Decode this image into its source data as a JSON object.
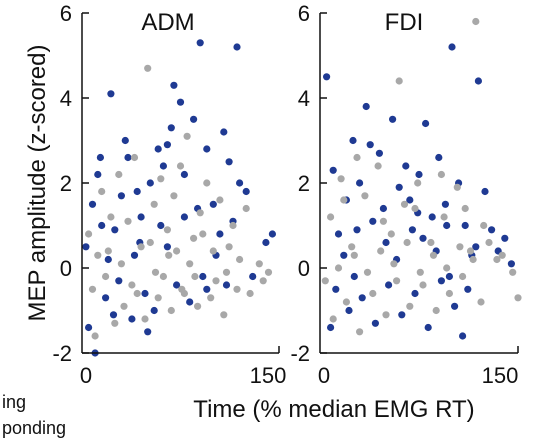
{
  "chart_data": [
    {
      "type": "scatter",
      "title": "ADM",
      "xlabel": "Time (% median EMG RT)",
      "ylabel": "MEP amplitude (z-scored)",
      "xlim": [
        0,
        150
      ],
      "ylim": [
        -2,
        6
      ],
      "xticks": [
        "0",
        "150"
      ],
      "yticks": [
        "-2",
        "0",
        "2",
        "4",
        "6"
      ],
      "grid": false,
      "series": [
        {
          "color": "#1f3a93",
          "points": [
            [
              10,
              -2.0
            ],
            [
              3,
              0.5
            ],
            [
              8,
              1.5
            ],
            [
              12,
              2.2
            ],
            [
              15,
              1.0
            ],
            [
              22,
              4.1
            ],
            [
              25,
              0.9
            ],
            [
              30,
              1.7
            ],
            [
              35,
              2.6
            ],
            [
              40,
              0.3
            ],
            [
              45,
              1.2
            ],
            [
              52,
              2.0
            ],
            [
              58,
              2.8
            ],
            [
              60,
              1.0
            ],
            [
              65,
              0.5
            ],
            [
              68,
              3.3
            ],
            [
              70,
              4.3
            ],
            [
              75,
              3.9
            ],
            [
              78,
              2.2
            ],
            [
              85,
              3.5
            ],
            [
              90,
              5.3
            ],
            [
              95,
              2.8
            ],
            [
              100,
              1.5
            ],
            [
              105,
              0.8
            ],
            [
              108,
              3.2
            ],
            [
              112,
              2.5
            ],
            [
              118,
              5.2
            ],
            [
              120,
              2.0
            ],
            [
              125,
              1.8
            ],
            [
              130,
              -0.2
            ],
            [
              140,
              0.6
            ],
            [
              145,
              0.8
            ],
            [
              18,
              -0.7
            ],
            [
              28,
              -0.3
            ],
            [
              38,
              -1.2
            ],
            [
              48,
              -0.6
            ],
            [
              55,
              -1.0
            ],
            [
              72,
              -0.4
            ],
            [
              82,
              -0.8
            ],
            [
              92,
              -0.2
            ],
            [
              5,
              -1.4
            ],
            [
              20,
              0.2
            ],
            [
              42,
              1.8
            ],
            [
              62,
              2.4
            ],
            [
              88,
              1.4
            ],
            [
              102,
              0.3
            ],
            [
              110,
              -0.4
            ],
            [
              14,
              2.6
            ],
            [
              33,
              3.0
            ],
            [
              50,
              -1.5
            ],
            [
              78,
              1.2
            ],
            [
              95,
              -0.5
            ],
            [
              65,
              2.9
            ],
            [
              115,
              1.1
            ],
            [
              24,
              -1.1
            ],
            [
              44,
              0.6
            ]
          ]
        },
        {
          "color": "#a8a8a8",
          "points": [
            [
              5,
              0.8
            ],
            [
              15,
              1.8
            ],
            [
              20,
              0.4
            ],
            [
              28,
              2.2
            ],
            [
              35,
              1.1
            ],
            [
              40,
              2.6
            ],
            [
              45,
              0.5
            ],
            [
              50,
              4.7
            ],
            [
              55,
              1.5
            ],
            [
              60,
              2.1
            ],
            [
              65,
              0.9
            ],
            [
              70,
              1.7
            ],
            [
              75,
              2.4
            ],
            [
              80,
              3.1
            ],
            [
              85,
              0.7
            ],
            [
              90,
              1.3
            ],
            [
              95,
              2.0
            ],
            [
              100,
              0.4
            ],
            [
              105,
              1.6
            ],
            [
              110,
              -0.1
            ],
            [
              115,
              1.0
            ],
            [
              120,
              0.2
            ],
            [
              128,
              -0.6
            ],
            [
              135,
              0.1
            ],
            [
              10,
              -1.6
            ],
            [
              25,
              -1.3
            ],
            [
              32,
              -0.9
            ],
            [
              48,
              -1.2
            ],
            [
              58,
              -0.7
            ],
            [
              68,
              -1.0
            ],
            [
              78,
              -0.6
            ],
            [
              88,
              -0.9
            ],
            [
              98,
              -0.7
            ],
            [
              108,
              -1.1
            ],
            [
              118,
              -0.5
            ],
            [
              138,
              -0.3
            ],
            [
              12,
              0.3
            ],
            [
              22,
              1.2
            ],
            [
              38,
              -0.4
            ],
            [
              52,
              0.6
            ],
            [
              62,
              -0.2
            ],
            [
              72,
              0.4
            ],
            [
              82,
              0.1
            ],
            [
              92,
              0.8
            ],
            [
              102,
              -0.3
            ],
            [
              112,
              0.5
            ],
            [
              125,
              1.4
            ],
            [
              142,
              -0.1
            ],
            [
              8,
              -0.5
            ],
            [
              18,
              -0.2
            ],
            [
              30,
              0.1
            ],
            [
              42,
              -0.6
            ],
            [
              56,
              -0.1
            ],
            [
              66,
              0.3
            ],
            [
              76,
              -0.5
            ],
            [
              86,
              -0.2
            ]
          ]
        }
      ]
    },
    {
      "type": "scatter",
      "title": "FDI",
      "xlabel": "Time (% median EMG RT)",
      "xlim": [
        0,
        150
      ],
      "ylim": [
        -2,
        6
      ],
      "xticks": [
        "0",
        "150"
      ],
      "yticks": [
        "-2",
        "0",
        "2",
        "4",
        "6"
      ],
      "grid": false,
      "series": [
        {
          "color": "#1f3a93",
          "points": [
            [
              5,
              4.5
            ],
            [
              10,
              2.3
            ],
            [
              14,
              0.8
            ],
            [
              20,
              1.6
            ],
            [
              25,
              3.0
            ],
            [
              30,
              2.0
            ],
            [
              35,
              3.8
            ],
            [
              40,
              1.1
            ],
            [
              45,
              2.7
            ],
            [
              50,
              0.6
            ],
            [
              55,
              3.5
            ],
            [
              60,
              1.9
            ],
            [
              65,
              2.4
            ],
            [
              70,
              0.9
            ],
            [
              75,
              2.2
            ],
            [
              80,
              3.4
            ],
            [
              85,
              1.2
            ],
            [
              90,
              2.6
            ],
            [
              95,
              1.5
            ],
            [
              100,
              5.2
            ],
            [
              105,
              2.0
            ],
            [
              110,
              1.0
            ],
            [
              115,
              0.3
            ],
            [
              120,
              4.4
            ],
            [
              125,
              1.8
            ],
            [
              130,
              0.9
            ],
            [
              135,
              0.4
            ],
            [
              140,
              0.7
            ],
            [
              145,
              0.1
            ],
            [
              12,
              -0.5
            ],
            [
              22,
              -1.0
            ],
            [
              32,
              -0.7
            ],
            [
              42,
              -1.3
            ],
            [
              52,
              -0.4
            ],
            [
              62,
              -1.1
            ],
            [
              72,
              -0.6
            ],
            [
              82,
              -1.4
            ],
            [
              92,
              -0.3
            ],
            [
              102,
              -0.9
            ],
            [
              112,
              -0.5
            ],
            [
              108,
              -1.6
            ],
            [
              18,
              0.3
            ],
            [
              28,
              0.9
            ],
            [
              48,
              1.4
            ],
            [
              58,
              0.2
            ],
            [
              68,
              1.6
            ],
            [
              78,
              0.7
            ],
            [
              88,
              0.4
            ],
            [
              98,
              -0.2
            ],
            [
              118,
              0.5
            ],
            [
              38,
              2.9
            ],
            [
              74,
              1.3
            ],
            [
              96,
              1.0
            ],
            [
              8,
              -1.4
            ],
            [
              26,
              -0.2
            ]
          ]
        },
        {
          "color": "#a8a8a8",
          "points": [
            [
              118,
              5.8
            ],
            [
              60,
              4.4
            ],
            [
              8,
              1.2
            ],
            [
              16,
              2.1
            ],
            [
              24,
              0.5
            ],
            [
              34,
              1.7
            ],
            [
              44,
              2.4
            ],
            [
              54,
              0.8
            ],
            [
              64,
              1.5
            ],
            [
              74,
              2.0
            ],
            [
              84,
              0.6
            ],
            [
              94,
              1.2
            ],
            [
              104,
              1.9
            ],
            [
              114,
              0.4
            ],
            [
              124,
              1.0
            ],
            [
              134,
              0.2
            ],
            [
              146,
              -0.1
            ],
            [
              150,
              -0.7
            ],
            [
              10,
              -1.2
            ],
            [
              20,
              -0.8
            ],
            [
              30,
              -1.5
            ],
            [
              40,
              -0.6
            ],
            [
              50,
              -1.1
            ],
            [
              58,
              -0.3
            ],
            [
              68,
              -0.9
            ],
            [
              78,
              -0.4
            ],
            [
              88,
              -1.0
            ],
            [
              98,
              -0.6
            ],
            [
              108,
              -0.2
            ],
            [
              122,
              -0.8
            ],
            [
              4,
              -0.3
            ],
            [
              14,
              0.0
            ],
            [
              26,
              0.3
            ],
            [
              36,
              -0.1
            ],
            [
              46,
              0.4
            ],
            [
              56,
              0.1
            ],
            [
              66,
              0.6
            ],
            [
              76,
              -0.1
            ],
            [
              86,
              0.3
            ],
            [
              96,
              0.0
            ],
            [
              106,
              0.5
            ],
            [
              116,
              0.2
            ],
            [
              128,
              0.6
            ],
            [
              138,
              0.3
            ],
            [
              18,
              1.6
            ],
            [
              28,
              2.6
            ],
            [
              48,
              1.1
            ],
            [
              72,
              1.4
            ],
            [
              92,
              2.2
            ],
            [
              110,
              1.4
            ]
          ]
        }
      ]
    }
  ],
  "legend_fragments": [
    "ing",
    "ponding"
  ]
}
